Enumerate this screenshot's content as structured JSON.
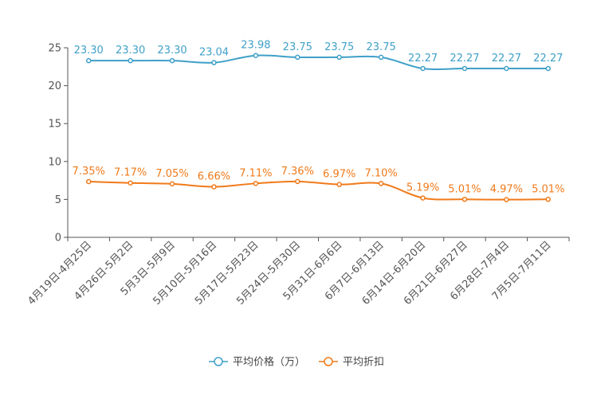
{
  "chart_data": {
    "type": "line",
    "categories": [
      "4月19日-4月25日",
      "4月26日-5月2日",
      "5月3日-5月9日",
      "5月10日-5月16日",
      "5月17日-5月23日",
      "5月24日-5月30日",
      "5月31日-6月6日",
      "6月7日-6月13日",
      "6月14日-6月20日",
      "6月21日-6月27日",
      "6月28日-7月4日",
      "7月5日-7月11日"
    ],
    "series": [
      {
        "name": "平均价格（万）",
        "color": "#3fa0c8",
        "values": [
          23.3,
          23.3,
          23.3,
          23.04,
          23.98,
          23.75,
          23.75,
          23.75,
          22.27,
          22.27,
          22.27,
          22.27
        ],
        "labels": [
          "23.30",
          "23.30",
          "23.30",
          "23.04",
          "23.98",
          "23.75",
          "23.75",
          "23.75",
          "22.27",
          "22.27",
          "22.27",
          "22.27"
        ]
      },
      {
        "name": "平均折扣",
        "color": "#f07a1a",
        "values": [
          7.35,
          7.17,
          7.05,
          6.66,
          7.11,
          7.36,
          6.97,
          7.1,
          5.19,
          5.01,
          4.97,
          5.01
        ],
        "labels": [
          "7.35%",
          "7.17%",
          "7.05%",
          "6.66%",
          "7.11%",
          "7.36%",
          "6.97%",
          "7.10%",
          "5.19%",
          "5.01%",
          "4.97%",
          "5.01%"
        ]
      }
    ],
    "yticks": [
      "0",
      "5",
      "10",
      "15",
      "20",
      "25"
    ],
    "ylim": [
      0,
      25
    ],
    "title": "",
    "xlabel": "",
    "ylabel": "",
    "legend": "bottom-center"
  }
}
